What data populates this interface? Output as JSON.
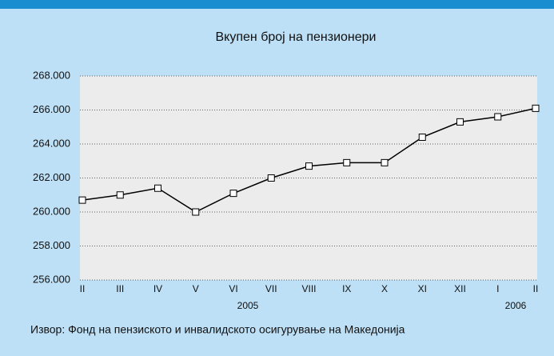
{
  "chart_data": {
    "type": "line",
    "title": "Вкупен број на пензионери",
    "categories": [
      "II",
      "III",
      "IV",
      "V",
      "VI",
      "VII",
      "VIII",
      "IX",
      "X",
      "XI",
      "XII",
      "I",
      "II"
    ],
    "year_labels": [
      "2005",
      "2006"
    ],
    "series": [
      {
        "color": "#000000",
        "values": [
          260700,
          261000,
          261400,
          260000,
          261100,
          262000,
          262700,
          262900,
          262900,
          264400,
          265300,
          265600,
          266100
        ]
      }
    ],
    "ylim": [
      256000,
      268000
    ],
    "yticks": [
      {
        "value": 256000,
        "label": "256.000"
      },
      {
        "value": 258000,
        "label": "258.000"
      },
      {
        "value": 260000,
        "label": "260.000"
      },
      {
        "value": 262000,
        "label": "262.000"
      },
      {
        "value": 264000,
        "label": "264.000"
      },
      {
        "value": 266000,
        "label": "266.000"
      },
      {
        "value": 268000,
        "label": "268.000"
      }
    ],
    "grid": true,
    "source": "Извор: Фонд на пензиското и инвалидското осигурување на Македонија"
  }
}
